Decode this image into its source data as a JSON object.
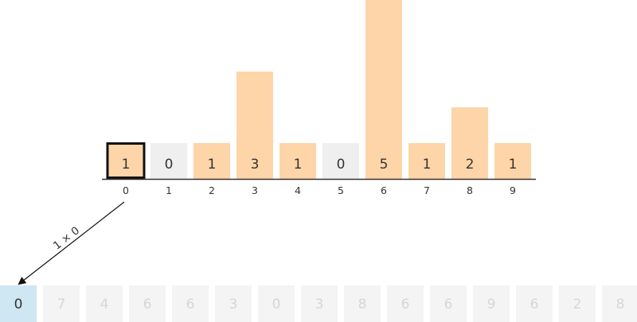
{
  "histogram": {
    "counts": [
      1,
      0,
      1,
      3,
      1,
      0,
      5,
      1,
      2,
      1
    ],
    "indices": [
      "0",
      "1",
      "2",
      "3",
      "4",
      "5",
      "6",
      "7",
      "8",
      "9"
    ],
    "highlighted_index": 0
  },
  "arrow": {
    "label": "1 × 0"
  },
  "output": {
    "values": [
      "0",
      "7",
      "4",
      "6",
      "6",
      "3",
      "0",
      "3",
      "8",
      "6",
      "6",
      "9",
      "6",
      "2",
      "8"
    ],
    "active_count": 1
  },
  "colors": {
    "bar_fill": "#fdd5a8",
    "zero_cell_fill": "#efefef",
    "highlight_border": "#111111",
    "axis_line": "#333333",
    "output_active_fill": "#cfe6f3",
    "output_active_text": "#333333",
    "output_inactive_fill": "#f4f4f4",
    "output_inactive_text": "#d6d6d6"
  }
}
